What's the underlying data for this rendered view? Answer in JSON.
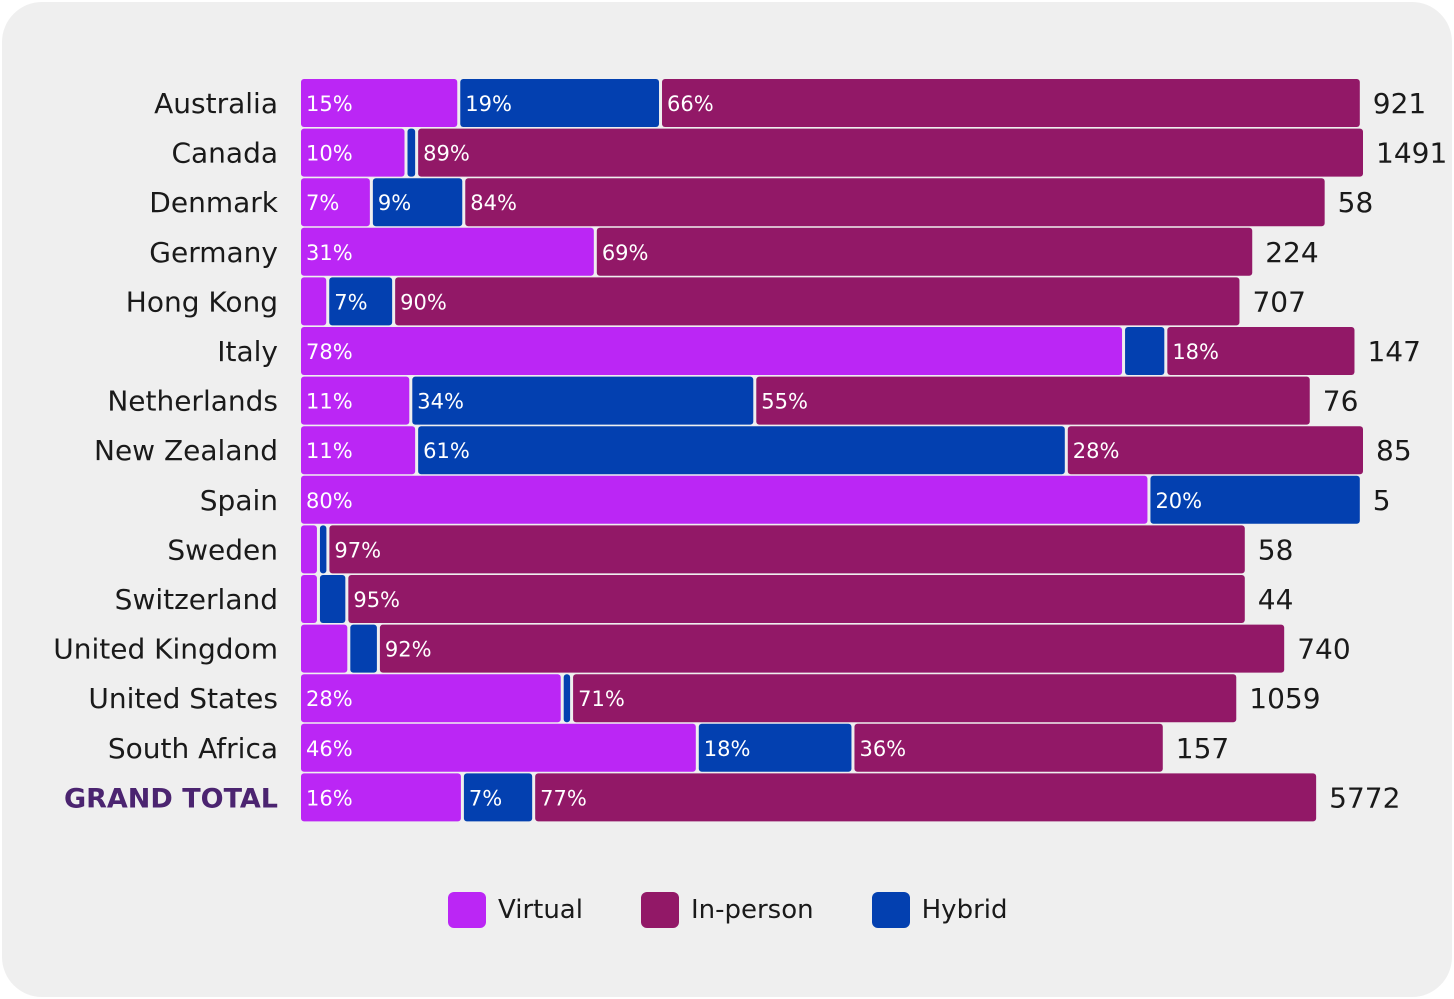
{
  "chart_data": {
    "type": "bar",
    "orientation": "horizontal",
    "stacked": "percent",
    "categories": [
      "Australia",
      "Canada",
      "Denmark",
      "Germany",
      "Hong Kong",
      "Italy",
      "Netherlands",
      "New Zealand",
      "Spain",
      "Sweden",
      "Switzerland",
      "United Kingdom",
      "United States",
      "South Africa",
      "GRAND TOTAL"
    ],
    "series": [
      {
        "name": "Virtual",
        "color": "#bb26f5",
        "values": [
          15,
          10,
          7,
          31,
          3,
          78,
          11,
          11,
          80,
          2,
          2,
          5,
          28,
          46,
          16
        ],
        "labels": [
          "15%",
          "10%",
          "7%",
          "31%",
          "",
          "78%",
          "11%",
          "11%",
          "80%",
          "",
          "",
          "",
          "28%",
          "46%",
          "16%"
        ]
      },
      {
        "name": "Hybrid",
        "color": "#0340b0",
        "values": [
          19,
          1,
          9,
          0,
          7,
          4,
          34,
          61,
          20,
          1,
          3,
          3,
          1,
          18,
          7
        ],
        "labels": [
          "19%",
          "",
          "9%",
          "",
          "7%",
          "",
          "34%",
          "61%",
          "20%",
          "",
          "",
          "",
          "",
          "18%",
          "7%"
        ]
      },
      {
        "name": "In-person",
        "color": "#921867",
        "values": [
          66,
          89,
          84,
          69,
          90,
          18,
          55,
          28,
          0,
          97,
          95,
          92,
          71,
          36,
          77
        ],
        "labels": [
          "66%",
          "89%",
          "84%",
          "69%",
          "90%",
          "18%",
          "55%",
          "28%",
          "",
          "97%",
          "95%",
          "92%",
          "71%",
          "36%",
          "77%"
        ]
      }
    ],
    "totals": [
      "921",
      "1491",
      "58",
      "224",
      "707",
      "147",
      "76",
      "85",
      "5",
      "58",
      "44",
      "740",
      "1059",
      "157",
      "5772"
    ],
    "bar_length_fraction": [
      0.997,
      1.0,
      0.964,
      0.896,
      0.884,
      0.992,
      0.95,
      1.0,
      0.997,
      0.889,
      0.889,
      0.926,
      0.881,
      0.812,
      0.956
    ],
    "legend": [
      {
        "name": "Virtual",
        "color": "#bb26f5"
      },
      {
        "name": "In-person",
        "color": "#921867"
      },
      {
        "name": "Hybrid",
        "color": "#0340b0"
      }
    ],
    "legend_position": "bottom",
    "grid": false
  }
}
